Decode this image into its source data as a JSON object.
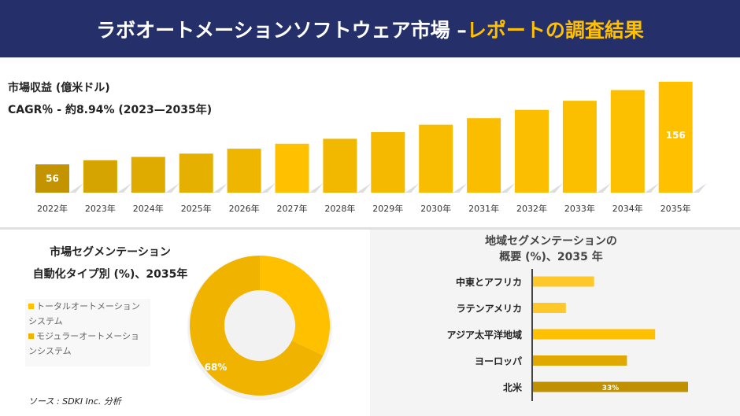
{
  "header": {
    "title_main": "ラボオートメーションソフトウェア市場 –",
    "title_highlight": "レポートの調査結果"
  },
  "revenue": {
    "title": "市場収益 (億米ドル)",
    "cagr": "CAGR％ - 約8.94% (2023—2035年)"
  },
  "segment": {
    "title1": "市場セグメンテーション",
    "title2": "自動化タイプ別 (%)、2035年",
    "legend": [
      {
        "label": "トータルオートメーションシステム",
        "color": "#ffc000"
      },
      {
        "label": "モジュラーオートメーションシステム",
        "color": "#f0b400"
      }
    ]
  },
  "region": {
    "title1": "地域セグメンテーションの",
    "title2": "概要 (%)、2035 年"
  },
  "source": "ソース : SDKI Inc. 分析",
  "chart_data": [
    {
      "type": "bar",
      "categories": [
        "2022年",
        "2023年",
        "2024年",
        "2025年",
        "2026年",
        "2027年",
        "2028年",
        "2029年",
        "2030年",
        "2031年",
        "2032年",
        "2033年",
        "2034年",
        "2035年"
      ],
      "values": [
        56,
        61,
        65,
        69,
        75,
        81,
        87,
        95,
        104,
        112,
        122,
        133,
        146,
        156
      ],
      "data_labels": {
        "0": "56",
        "13": "156"
      },
      "ylabel": "",
      "grid": false
    },
    {
      "type": "pie",
      "donut": true,
      "labels": [
        "トータルオートメーションシステム",
        "モジュラーオートメーションシステム"
      ],
      "values": [
        32,
        68
      ],
      "data_labels": [
        "",
        "68%"
      ],
      "colors": [
        "#ffc000",
        "#f0b400"
      ]
    },
    {
      "type": "bar",
      "orientation": "horizontal",
      "categories": [
        "中東とアフリカ",
        "ラテンアメリカ",
        "アジア太平洋地域",
        "ヨーロッパ",
        "北米"
      ],
      "values": [
        13,
        7,
        26,
        20,
        33
      ],
      "data_labels": [
        "",
        "",
        "",
        "",
        "33%"
      ],
      "colors": [
        "#ffc82a",
        "#ffc82a",
        "#ffc000",
        "#e0a800",
        "#bf9000"
      ]
    }
  ]
}
